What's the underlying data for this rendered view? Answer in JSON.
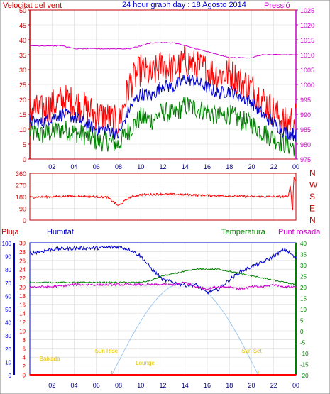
{
  "chart_data": [
    {
      "type": "line",
      "title": "24 hour graph day : 18 Agosto 2014",
      "left_label": "Velocitat del vent",
      "right_label": "Pressió",
      "x_ticks": [
        "02",
        "04",
        "06",
        "08",
        "10",
        "12",
        "14",
        "16",
        "18",
        "20",
        "22",
        "00"
      ],
      "y_left_ticks": [
        0,
        5,
        10,
        15,
        20,
        25,
        30,
        35,
        40,
        45,
        50
      ],
      "y_right_ticks": [
        975,
        980,
        985,
        990,
        995,
        1000,
        1005,
        1010,
        1015,
        1020,
        1025
      ],
      "ylim_left": [
        0,
        50
      ],
      "ylim_right": [
        975,
        1025
      ],
      "colors": {
        "gust": "#ff0000",
        "average": "#0000cc",
        "minimum": "#008000",
        "pressure": "#cc00cc",
        "left_axis": "#cc0000",
        "right_axis": "#cc00cc"
      },
      "series": [
        {
          "values_by_hour": [
            [
              0,
              17
            ],
            [
              1,
              16
            ],
            [
              2,
              18
            ],
            [
              3,
              20
            ],
            [
              4,
              19
            ],
            [
              5,
              17
            ],
            [
              6,
              15
            ],
            [
              7,
              14
            ],
            [
              8,
              12
            ],
            [
              9,
              25
            ],
            [
              10,
              30
            ],
            [
              11,
              28
            ],
            [
              12,
              32
            ],
            [
              13,
              30
            ],
            [
              14,
              33
            ],
            [
              15,
              31
            ],
            [
              16,
              30
            ],
            [
              17,
              28
            ],
            [
              18,
              29
            ],
            [
              19,
              26
            ],
            [
              20,
              24
            ],
            [
              21,
              20
            ],
            [
              22,
              16
            ],
            [
              23,
              12
            ],
            [
              24,
              14
            ]
          ]
        },
        {
          "values_by_hour": [
            [
              0,
              13
            ],
            [
              1,
              12
            ],
            [
              2,
              14
            ],
            [
              3,
              15
            ],
            [
              4,
              14
            ],
            [
              5,
              12
            ],
            [
              6,
              10
            ],
            [
              7,
              10
            ],
            [
              8,
              8
            ],
            [
              9,
              17
            ],
            [
              10,
              22
            ],
            [
              11,
              21
            ],
            [
              12,
              25
            ],
            [
              13,
              24
            ],
            [
              14,
              27
            ],
            [
              15,
              26
            ],
            [
              16,
              24
            ],
            [
              17,
              22
            ],
            [
              18,
              23
            ],
            [
              19,
              21
            ],
            [
              20,
              19
            ],
            [
              21,
              15
            ],
            [
              22,
              12
            ],
            [
              23,
              9
            ],
            [
              24,
              8
            ]
          ]
        },
        {
          "values_by_hour": [
            [
              0,
              9
            ],
            [
              1,
              8
            ],
            [
              2,
              9
            ],
            [
              3,
              10
            ],
            [
              4,
              9
            ],
            [
              5,
              8
            ],
            [
              6,
              6
            ],
            [
              7,
              6
            ],
            [
              8,
              5
            ],
            [
              9,
              10
            ],
            [
              10,
              14
            ],
            [
              11,
              13
            ],
            [
              12,
              16
            ],
            [
              13,
              15
            ],
            [
              14,
              18
            ],
            [
              15,
              17
            ],
            [
              16,
              16
            ],
            [
              17,
              14
            ],
            [
              18,
              15
            ],
            [
              19,
              13
            ],
            [
              20,
              12
            ],
            [
              21,
              9
            ],
            [
              22,
              7
            ],
            [
              23,
              5
            ],
            [
              24,
              4
            ]
          ]
        },
        {
          "values_by_hour": [
            [
              0,
              1013
            ],
            [
              1,
              1013
            ],
            [
              2,
              1013
            ],
            [
              3,
              1013
            ],
            [
              4,
              1012
            ],
            [
              5,
              1012
            ],
            [
              6,
              1012
            ],
            [
              7,
              1012
            ],
            [
              8,
              1012
            ],
            [
              9,
              1012
            ],
            [
              10,
              1013
            ],
            [
              11,
              1014
            ],
            [
              12,
              1014
            ],
            [
              13,
              1014
            ],
            [
              14,
              1013
            ],
            [
              15,
              1012
            ],
            [
              16,
              1011
            ],
            [
              17,
              1010
            ],
            [
              18,
              1009
            ],
            [
              19,
              1009
            ],
            [
              20,
              1009
            ],
            [
              21,
              1010
            ],
            [
              22,
              1010
            ],
            [
              23,
              1010
            ],
            [
              24,
              1010
            ]
          ]
        }
      ]
    },
    {
      "type": "line",
      "y_ticks": [
        360,
        270,
        180,
        90,
        0
      ],
      "ylim": [
        0,
        360
      ],
      "right_labels": [
        "N",
        "W",
        "S",
        "E",
        "N"
      ],
      "color": "#ff0000",
      "series": [
        {
          "values_by_hour": [
            [
              0,
              175
            ],
            [
              2,
              180
            ],
            [
              4,
              185
            ],
            [
              6,
              180
            ],
            [
              7,
              175
            ],
            [
              8,
              110
            ],
            [
              9,
              175
            ],
            [
              10,
              195
            ],
            [
              12,
              200
            ],
            [
              14,
              195
            ],
            [
              16,
              190
            ],
            [
              18,
              185
            ],
            [
              20,
              180
            ],
            [
              22,
              180
            ],
            [
              23.3,
              180
            ],
            [
              23.5,
              270
            ],
            [
              23.7,
              40
            ],
            [
              23.8,
              330
            ],
            [
              24,
              300
            ]
          ]
        }
      ]
    },
    {
      "type": "line",
      "legend": [
        "Pluja",
        "Humitat",
        "Temperatura",
        "Punt rosada"
      ],
      "y_humidity_ticks": [
        0,
        10,
        20,
        30,
        40,
        50,
        60,
        70,
        80,
        90,
        100
      ],
      "y_rain_ticks": [
        0,
        2,
        4,
        6,
        8,
        10,
        12,
        14,
        16,
        18,
        20,
        22,
        24,
        26,
        28,
        30
      ],
      "y_temp_ticks": [
        -20,
        -15,
        -10,
        -5,
        0,
        5,
        10,
        15,
        20,
        25,
        30,
        35,
        40
      ],
      "ylim_humidity": [
        0,
        100
      ],
      "ylim_temp": [
        -20,
        40
      ],
      "x_ticks": [
        "02",
        "04",
        "06",
        "08",
        "10",
        "12",
        "14",
        "16",
        "18",
        "20",
        "22",
        "00"
      ],
      "annotations": [
        "Baixada",
        "Sun Rise",
        "Lounge",
        "Sun Set"
      ],
      "colors": {
        "rain": "#ff0000",
        "humidity": "#0000cc",
        "temperature": "#008000",
        "dewpoint": "#cc00cc",
        "sun": "#9ec8f0",
        "annotation": "#e0c000",
        "humidity_axis": "#0000cc",
        "rain_axis": "#cc0000",
        "temp_axis": "#008000"
      },
      "series": [
        {
          "values_by_hour": [
            [
              0,
              92
            ],
            [
              2,
              95
            ],
            [
              4,
              96
            ],
            [
              6,
              96
            ],
            [
              8,
              97
            ],
            [
              9,
              95
            ],
            [
              10,
              90
            ],
            [
              11,
              80
            ],
            [
              12,
              72
            ],
            [
              13,
              70
            ],
            [
              14,
              68
            ],
            [
              15,
              68
            ],
            [
              16,
              62
            ],
            [
              17,
              65
            ],
            [
              18,
              72
            ],
            [
              19,
              78
            ],
            [
              20,
              82
            ],
            [
              21,
              85
            ],
            [
              22,
              90
            ],
            [
              23,
              95
            ],
            [
              23.5,
              92
            ],
            [
              24,
              88
            ]
          ]
        },
        {
          "values_by_hour": [
            [
              0,
              22
            ],
            [
              2,
              22
            ],
            [
              4,
              22
            ],
            [
              6,
              22
            ],
            [
              8,
              22
            ],
            [
              9,
              22
            ],
            [
              10,
              22
            ],
            [
              11,
              23
            ],
            [
              12,
              25
            ],
            [
              13,
              26
            ],
            [
              14,
              27
            ],
            [
              15,
              28
            ],
            [
              16,
              28
            ],
            [
              17,
              28
            ],
            [
              18,
              27
            ],
            [
              19,
              26
            ],
            [
              20,
              25
            ],
            [
              21,
              24
            ],
            [
              22,
              23
            ],
            [
              23,
              22
            ],
            [
              24,
              21
            ]
          ]
        },
        {
          "values_by_hour": [
            [
              0,
              20
            ],
            [
              2,
              20
            ],
            [
              4,
              21
            ],
            [
              6,
              21
            ],
            [
              8,
              21
            ],
            [
              10,
              21
            ],
            [
              12,
              21
            ],
            [
              13,
              21
            ],
            [
              14,
              22
            ],
            [
              15,
              20
            ],
            [
              16,
              19
            ],
            [
              17,
              20
            ],
            [
              18,
              20
            ],
            [
              19,
              19
            ],
            [
              20,
              20
            ],
            [
              21,
              20
            ],
            [
              22,
              21
            ],
            [
              23,
              20
            ],
            [
              24,
              20
            ]
          ]
        },
        {
          "values_by_hour": [
            [
              0,
              0
            ],
            [
              24,
              0
            ]
          ]
        }
      ],
      "sun_curve": {
        "rise_hour": 7.4,
        "set_hour": 20.6,
        "peak_hour": 14,
        "peak_percent": 70
      }
    }
  ]
}
